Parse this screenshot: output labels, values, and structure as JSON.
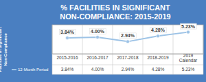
{
  "chart_data": {
    "type": "line",
    "title": "% FACILITIES IN SIGNIFICANT NON-COMPLIANCE: 2015-2019",
    "y_label": "Facilities in Significant Non-Compliance",
    "categories": [
      "2015-2016",
      "2016-2017",
      "2017-2018",
      "2018-2019",
      "2019 Calendar"
    ],
    "series": [
      {
        "name": "12-Month Period",
        "color": "#9dc3e6",
        "values": [
          3.84,
          4.0,
          2.94,
          4.28,
          5.23
        ],
        "value_labels": [
          "3.84%",
          "4.00%",
          "2.94%",
          "4.28%",
          "5.23%"
        ]
      }
    ],
    "ylim": [
      0,
      7
    ],
    "data_labels": true,
    "tick_labels": "x",
    "marker": "circle",
    "line_style": "solid"
  }
}
